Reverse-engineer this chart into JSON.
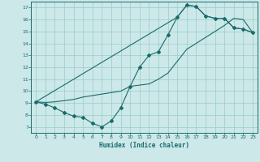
{
  "xlabel": "Humidex (Indice chaleur)",
  "bg_color": "#cce8e8",
  "line_color": "#1a6b6b",
  "grid_color": "#99cccc",
  "xlim": [
    -0.5,
    23.5
  ],
  "ylim": [
    6.5,
    17.5
  ],
  "xticks": [
    0,
    1,
    2,
    3,
    4,
    5,
    6,
    7,
    8,
    9,
    10,
    11,
    12,
    13,
    14,
    15,
    16,
    17,
    18,
    19,
    20,
    21,
    22,
    23
  ],
  "yticks": [
    7,
    8,
    9,
    10,
    11,
    12,
    13,
    14,
    15,
    16,
    17
  ],
  "line1_x": [
    0,
    1,
    2,
    3,
    4,
    5,
    6,
    7,
    8,
    9,
    10,
    11,
    12,
    13,
    14,
    15,
    16,
    17,
    18,
    19,
    20,
    21,
    22,
    23
  ],
  "line1_y": [
    9.1,
    8.9,
    8.6,
    8.2,
    7.9,
    7.8,
    7.3,
    7.0,
    7.5,
    8.6,
    10.4,
    12.0,
    13.0,
    13.3,
    14.7,
    16.2,
    17.2,
    17.1,
    16.3,
    16.1,
    16.1,
    15.3,
    15.2,
    14.9
  ],
  "line2_x": [
    0,
    1,
    2,
    3,
    4,
    5,
    9,
    10,
    11,
    12,
    13,
    14,
    15,
    16,
    17,
    18,
    19,
    20,
    21,
    22,
    23
  ],
  "line2_y": [
    9.1,
    9.05,
    9.1,
    9.2,
    9.3,
    9.5,
    10.0,
    10.4,
    10.5,
    10.6,
    11.0,
    11.5,
    12.5,
    13.5,
    14.0,
    14.5,
    15.0,
    15.5,
    16.1,
    16.0,
    14.9
  ],
  "line3_x": [
    0,
    15,
    16,
    17,
    18,
    19,
    20,
    21,
    22,
    23
  ],
  "line3_y": [
    9.1,
    16.2,
    17.2,
    17.1,
    16.3,
    16.1,
    16.1,
    15.3,
    15.2,
    14.9
  ]
}
